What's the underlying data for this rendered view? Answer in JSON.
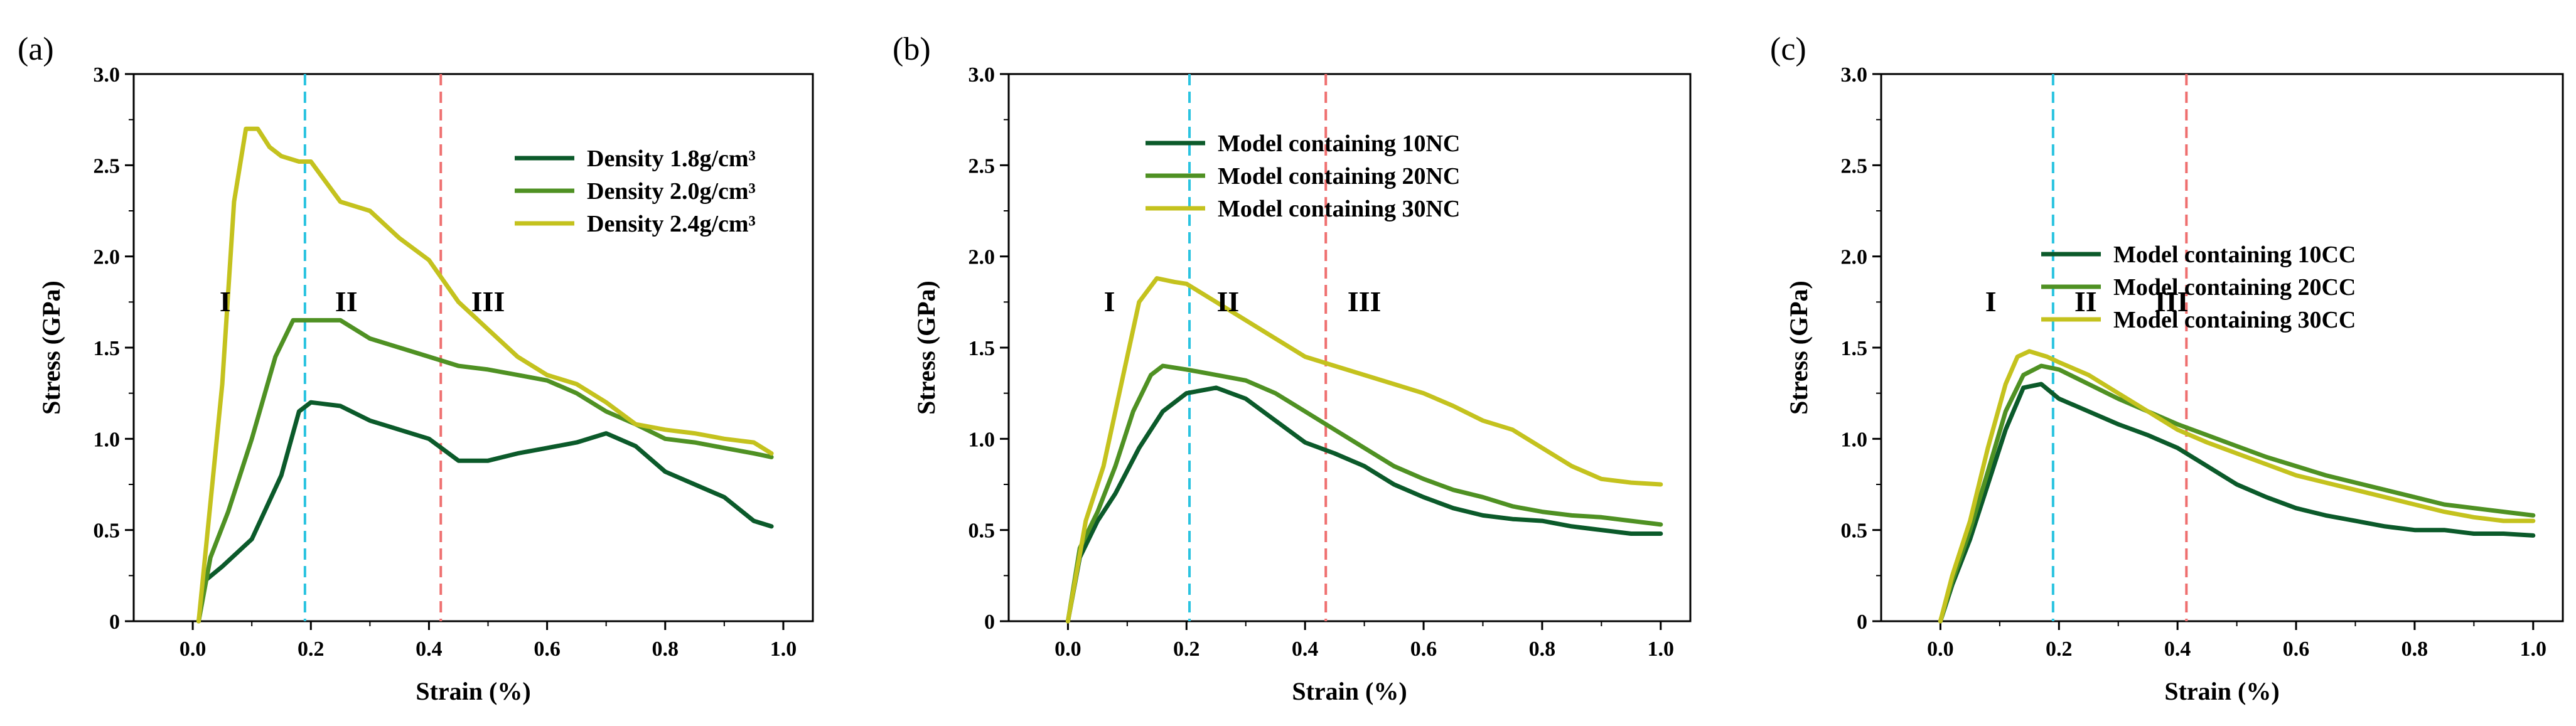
{
  "chart_data": [
    {
      "type": "line",
      "panel_label": "(a)",
      "xlabel": "Strain (%)",
      "ylabel": "Stress (GPa)",
      "xlim": [
        -0.1,
        1.05
      ],
      "ylim": [
        0,
        3.0
      ],
      "x_ticks": [
        "0.0",
        "0.2",
        "0.4",
        "0.6",
        "0.8",
        "1.0"
      ],
      "y_ticks": [
        "0",
        "0.5",
        "1.0",
        "1.5",
        "2.0",
        "2.5",
        "3.0"
      ],
      "legend_position": "top-right",
      "vlines": [
        {
          "x": 0.19,
          "color": "#29c3e0"
        },
        {
          "x": 0.42,
          "color": "#ef6f6f"
        }
      ],
      "stage_labels": [
        {
          "text": "I",
          "x": 0.055,
          "y": 1.7
        },
        {
          "text": "II",
          "x": 0.26,
          "y": 1.7
        },
        {
          "text": "III",
          "x": 0.5,
          "y": 1.7
        }
      ],
      "series": [
        {
          "name": "Density 1.8g/cm³",
          "color": "#0b5a2a",
          "x": [
            0.01,
            0.02,
            0.05,
            0.1,
            0.15,
            0.18,
            0.2,
            0.25,
            0.3,
            0.35,
            0.4,
            0.45,
            0.5,
            0.55,
            0.6,
            0.65,
            0.7,
            0.75,
            0.8,
            0.85,
            0.9,
            0.95,
            0.98
          ],
          "y": [
            0.0,
            0.22,
            0.3,
            0.45,
            0.8,
            1.15,
            1.2,
            1.18,
            1.1,
            1.05,
            1.0,
            0.88,
            0.88,
            0.92,
            0.95,
            0.98,
            1.03,
            0.96,
            0.82,
            0.75,
            0.68,
            0.55,
            0.52
          ]
        },
        {
          "name": "Density 2.0g/cm³",
          "color": "#4f9123",
          "x": [
            0.01,
            0.03,
            0.06,
            0.1,
            0.14,
            0.17,
            0.2,
            0.25,
            0.3,
            0.35,
            0.4,
            0.45,
            0.5,
            0.55,
            0.6,
            0.65,
            0.7,
            0.75,
            0.8,
            0.85,
            0.9,
            0.95,
            0.98
          ],
          "y": [
            0.0,
            0.35,
            0.6,
            1.0,
            1.45,
            1.65,
            1.65,
            1.65,
            1.55,
            1.5,
            1.45,
            1.4,
            1.38,
            1.35,
            1.32,
            1.25,
            1.15,
            1.08,
            1.0,
            0.98,
            0.95,
            0.92,
            0.9
          ]
        },
        {
          "name": "Density 2.4g/cm³",
          "color": "#c4c21e",
          "x": [
            0.01,
            0.03,
            0.05,
            0.07,
            0.09,
            0.11,
            0.13,
            0.15,
            0.18,
            0.2,
            0.25,
            0.3,
            0.35,
            0.4,
            0.45,
            0.5,
            0.55,
            0.6,
            0.65,
            0.7,
            0.75,
            0.8,
            0.85,
            0.9,
            0.95,
            0.98
          ],
          "y": [
            0.0,
            0.65,
            1.3,
            2.3,
            2.7,
            2.7,
            2.6,
            2.55,
            2.52,
            2.52,
            2.3,
            2.25,
            2.1,
            1.98,
            1.75,
            1.6,
            1.45,
            1.35,
            1.3,
            1.2,
            1.08,
            1.05,
            1.03,
            1.0,
            0.98,
            0.92
          ]
        }
      ]
    },
    {
      "type": "line",
      "panel_label": "(b)",
      "xlabel": "Strain (%)",
      "ylabel": "Stress (GPa)",
      "xlim": [
        -0.1,
        1.05
      ],
      "ylim": [
        0,
        3.0
      ],
      "x_ticks": [
        "0.0",
        "0.2",
        "0.4",
        "0.6",
        "0.8",
        "1.0"
      ],
      "y_ticks": [
        "0",
        "0.5",
        "1.0",
        "1.5",
        "2.0",
        "2.5",
        "3.0"
      ],
      "legend_position": "top-left",
      "vlines": [
        {
          "x": 0.205,
          "color": "#29c3e0"
        },
        {
          "x": 0.435,
          "color": "#ef6f6f"
        }
      ],
      "stage_labels": [
        {
          "text": "I",
          "x": 0.07,
          "y": 1.7
        },
        {
          "text": "II",
          "x": 0.27,
          "y": 1.7
        },
        {
          "text": "III",
          "x": 0.5,
          "y": 1.7
        }
      ],
      "series": [
        {
          "name": "Model containing 10NC",
          "color": "#0b5a2a",
          "x": [
            0.0,
            0.02,
            0.05,
            0.08,
            0.12,
            0.16,
            0.2,
            0.25,
            0.3,
            0.35,
            0.4,
            0.45,
            0.5,
            0.55,
            0.6,
            0.65,
            0.7,
            0.75,
            0.8,
            0.85,
            0.9,
            0.95,
            1.0
          ],
          "y": [
            0.0,
            0.35,
            0.55,
            0.7,
            0.95,
            1.15,
            1.25,
            1.28,
            1.22,
            1.1,
            0.98,
            0.92,
            0.85,
            0.75,
            0.68,
            0.62,
            0.58,
            0.56,
            0.55,
            0.52,
            0.5,
            0.48,
            0.48
          ]
        },
        {
          "name": "Model containing 20NC",
          "color": "#4f9123",
          "x": [
            0.0,
            0.02,
            0.05,
            0.08,
            0.11,
            0.14,
            0.16,
            0.2,
            0.25,
            0.3,
            0.35,
            0.4,
            0.45,
            0.5,
            0.55,
            0.6,
            0.65,
            0.7,
            0.75,
            0.8,
            0.85,
            0.9,
            0.95,
            1.0
          ],
          "y": [
            0.0,
            0.4,
            0.6,
            0.85,
            1.15,
            1.35,
            1.4,
            1.38,
            1.35,
            1.32,
            1.25,
            1.15,
            1.05,
            0.95,
            0.85,
            0.78,
            0.72,
            0.68,
            0.63,
            0.6,
            0.58,
            0.57,
            0.55,
            0.53
          ]
        },
        {
          "name": "Model containing 30NC",
          "color": "#c4c21e",
          "x": [
            0.0,
            0.03,
            0.06,
            0.09,
            0.12,
            0.15,
            0.18,
            0.2,
            0.25,
            0.3,
            0.35,
            0.4,
            0.45,
            0.5,
            0.55,
            0.6,
            0.65,
            0.7,
            0.75,
            0.8,
            0.85,
            0.9,
            0.95,
            1.0
          ],
          "y": [
            0.0,
            0.55,
            0.85,
            1.3,
            1.75,
            1.88,
            1.86,
            1.85,
            1.75,
            1.65,
            1.55,
            1.45,
            1.4,
            1.35,
            1.3,
            1.25,
            1.18,
            1.1,
            1.05,
            0.95,
            0.85,
            0.78,
            0.76,
            0.75
          ]
        }
      ]
    },
    {
      "type": "line",
      "panel_label": "(c)",
      "xlabel": "Strain (%)",
      "ylabel": "Stress (GPa)",
      "xlim": [
        -0.1,
        1.05
      ],
      "ylim": [
        0,
        3.0
      ],
      "x_ticks": [
        "0.0",
        "0.2",
        "0.4",
        "0.6",
        "0.8",
        "1.0"
      ],
      "y_ticks": [
        "0",
        "0.5",
        "1.0",
        "1.5",
        "2.0",
        "2.5",
        "3.0"
      ],
      "legend_position": "center",
      "vlines": [
        {
          "x": 0.19,
          "color": "#29c3e0"
        },
        {
          "x": 0.415,
          "color": "#ef6f6f"
        }
      ],
      "stage_labels": [
        {
          "text": "I",
          "x": 0.085,
          "y": 1.7
        },
        {
          "text": "II",
          "x": 0.245,
          "y": 1.7
        },
        {
          "text": "III",
          "x": 0.39,
          "y": 1.7
        }
      ],
      "series": [
        {
          "name": "Model containing 10CC",
          "color": "#0b5a2a",
          "x": [
            0.0,
            0.02,
            0.05,
            0.08,
            0.11,
            0.14,
            0.17,
            0.2,
            0.25,
            0.3,
            0.35,
            0.4,
            0.45,
            0.5,
            0.55,
            0.6,
            0.65,
            0.7,
            0.75,
            0.8,
            0.85,
            0.9,
            0.95,
            1.0
          ],
          "y": [
            0.0,
            0.2,
            0.45,
            0.75,
            1.05,
            1.28,
            1.3,
            1.22,
            1.15,
            1.08,
            1.02,
            0.95,
            0.85,
            0.75,
            0.68,
            0.62,
            0.58,
            0.55,
            0.52,
            0.5,
            0.5,
            0.48,
            0.48,
            0.47
          ]
        },
        {
          "name": "Model containing 20CC",
          "color": "#4f9123",
          "x": [
            0.0,
            0.02,
            0.05,
            0.08,
            0.11,
            0.14,
            0.17,
            0.2,
            0.25,
            0.3,
            0.35,
            0.4,
            0.45,
            0.5,
            0.55,
            0.6,
            0.65,
            0.7,
            0.75,
            0.8,
            0.85,
            0.9,
            0.95,
            1.0
          ],
          "y": [
            0.0,
            0.22,
            0.5,
            0.82,
            1.15,
            1.35,
            1.4,
            1.38,
            1.3,
            1.22,
            1.15,
            1.08,
            1.02,
            0.96,
            0.9,
            0.85,
            0.8,
            0.76,
            0.72,
            0.68,
            0.64,
            0.62,
            0.6,
            0.58
          ]
        },
        {
          "name": "Model containing 30CC",
          "color": "#c4c21e",
          "x": [
            0.0,
            0.02,
            0.05,
            0.08,
            0.11,
            0.13,
            0.15,
            0.18,
            0.2,
            0.25,
            0.3,
            0.35,
            0.4,
            0.45,
            0.5,
            0.55,
            0.6,
            0.65,
            0.7,
            0.75,
            0.8,
            0.85,
            0.9,
            0.95,
            1.0
          ],
          "y": [
            0.0,
            0.25,
            0.55,
            0.95,
            1.3,
            1.45,
            1.48,
            1.45,
            1.42,
            1.35,
            1.25,
            1.15,
            1.05,
            0.98,
            0.92,
            0.86,
            0.8,
            0.76,
            0.72,
            0.68,
            0.64,
            0.6,
            0.57,
            0.55,
            0.55
          ]
        }
      ]
    }
  ]
}
